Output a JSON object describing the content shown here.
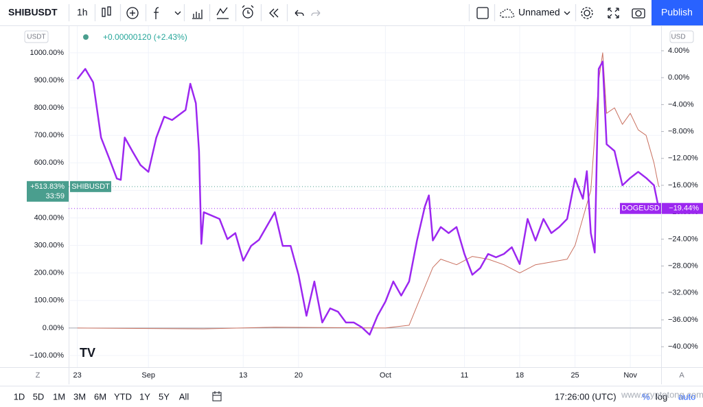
{
  "toolbar": {
    "symbol": "SHIBUSDT",
    "interval": "1h",
    "layout_name": "Unnamed",
    "publish": "Publish"
  },
  "legend": {
    "change": "+0.00000120 (+2.43%)"
  },
  "axis_units": {
    "left": "USDT",
    "right": "USD"
  },
  "chart_data": {
    "type": "line",
    "grid": true,
    "xlim": [
      -1.1,
      73.9
    ],
    "xticks": [
      {
        "value": 0,
        "label": "23"
      },
      {
        "value": 9,
        "label": "Sep"
      },
      {
        "value": 21,
        "label": "13"
      },
      {
        "value": 28,
        "label": "20"
      },
      {
        "value": 39,
        "label": "Oct"
      },
      {
        "value": 49,
        "label": "11"
      },
      {
        "value": 56,
        "label": "18"
      },
      {
        "value": 63,
        "label": "25"
      },
      {
        "value": 70,
        "label": "Nov"
      }
    ],
    "ylim": [
      -142.4,
      1097
    ],
    "yticks": [
      {
        "value": 1000,
        "label": "1000.00%"
      },
      {
        "value": 900,
        "label": "900.00%"
      },
      {
        "value": 800,
        "label": "800.00%"
      },
      {
        "value": 700,
        "label": "700.00%"
      },
      {
        "value": 600,
        "label": "600.00%"
      },
      {
        "value": 500,
        "label": "500.00%"
      },
      {
        "value": 400,
        "label": "400.00%"
      },
      {
        "value": 300,
        "label": "300.00%"
      },
      {
        "value": 200,
        "label": "200.00%"
      },
      {
        "value": 100,
        "label": "100.00%"
      },
      {
        "value": 0,
        "label": "0.00%"
      },
      {
        "value": -100,
        "label": "−100.00%"
      }
    ],
    "y2lim": [
      -43.04,
      7.67
    ],
    "y2ticks": [
      {
        "value": 4,
        "label": "4.00%"
      },
      {
        "value": 0,
        "label": "0.00%"
      },
      {
        "value": -4,
        "label": "−4.00%"
      },
      {
        "value": -8,
        "label": "−8.00%"
      },
      {
        "value": -12,
        "label": "−12.00%"
      },
      {
        "value": -16,
        "label": "−16.00%"
      },
      {
        "value": -20,
        "label": "−20.00%"
      },
      {
        "value": -24,
        "label": "−24.00%"
      },
      {
        "value": -28,
        "label": "−28.00%"
      },
      {
        "value": -32,
        "label": "−32.00%"
      },
      {
        "value": -36,
        "label": "−36.00%"
      },
      {
        "value": -40,
        "label": "−40.00%"
      }
    ],
    "series": [
      {
        "name": "SHIBUSDT",
        "color": "#c9705f",
        "axis": "y",
        "last_label": "+513.83%",
        "countdown": "33:59",
        "label_color": "#4a9e8e",
        "x": [
          0,
          16,
          25,
          39,
          42,
          43,
          44,
          45,
          46,
          48,
          50,
          52,
          54,
          56,
          58,
          60,
          62,
          63,
          64,
          65,
          66,
          66.5,
          67,
          68,
          69,
          70,
          71,
          72,
          73,
          73.6
        ],
        "values": [
          0,
          -3,
          3,
          0,
          10,
          80,
          150,
          220,
          250,
          230,
          260,
          250,
          230,
          200,
          230,
          240,
          250,
          300,
          400,
          500,
          900,
          1000,
          780,
          800,
          740,
          780,
          720,
          700,
          600,
          513.83
        ]
      },
      {
        "name": "DOGEUSD",
        "color": "#9c27f0",
        "axis": "y2",
        "last_label": "−19.44%",
        "label_color": "#9c27f0",
        "x": [
          0,
          1,
          2,
          3,
          4,
          5,
          5.5,
          6,
          7,
          8,
          9,
          10,
          11,
          12,
          13.7,
          14.3,
          15,
          15.4,
          15.7,
          16,
          18,
          19,
          20,
          21,
          22,
          23,
          25,
          26,
          27,
          28,
          29,
          30,
          31,
          32,
          33,
          34,
          35,
          36,
          37,
          38,
          39,
          40,
          41,
          42,
          43,
          44,
          44.5,
          45,
          46,
          47,
          48,
          49,
          50,
          51,
          52,
          53,
          54,
          55,
          56,
          57,
          58,
          59,
          60,
          61,
          62,
          63,
          64,
          64.5,
          65,
          65.5,
          66,
          66.5,
          67,
          68,
          69,
          70,
          71,
          72,
          73,
          73.6
        ],
        "values": [
          -0.2,
          1.3,
          -0.7,
          -8.9,
          -11.9,
          -15,
          -15.2,
          -8.9,
          -11,
          -13,
          -14,
          -8.9,
          -5.8,
          -6.3,
          -4.8,
          -0.9,
          -3.8,
          -10.9,
          -24.7,
          -20,
          -21,
          -24,
          -23.1,
          -27.2,
          -25,
          -24.1,
          -20,
          -25,
          -25,
          -29.3,
          -35.4,
          -30.3,
          -36.4,
          -34.3,
          -34.8,
          -36.4,
          -36.4,
          -37.1,
          -38.2,
          -35.4,
          -33.3,
          -30.3,
          -32.4,
          -30.3,
          -24.2,
          -19.1,
          -17.5,
          -24.2,
          -22.2,
          -23.1,
          -22.2,
          -26.2,
          -29.3,
          -28.3,
          -26.2,
          -26.7,
          -26.2,
          -25.2,
          -27.7,
          -21,
          -24.2,
          -21,
          -23.1,
          -22.2,
          -21,
          -15,
          -18,
          -13.9,
          -23.1,
          -26,
          1.3,
          2.4,
          -9.9,
          -10.9,
          -16,
          -14.9,
          -14,
          -14.9,
          -16,
          -19.44
        ]
      }
    ]
  },
  "watermark": "www.cryptotong.com",
  "time_axis": {
    "left_button": "Z",
    "right_button": "A"
  },
  "bottom_bar": {
    "ranges": [
      "1D",
      "5D",
      "1M",
      "3M",
      "6M",
      "YTD",
      "1Y",
      "5Y",
      "All"
    ],
    "clock": "17:26:00 (UTC)",
    "percent": "%",
    "log": "log",
    "auto": "auto"
  }
}
